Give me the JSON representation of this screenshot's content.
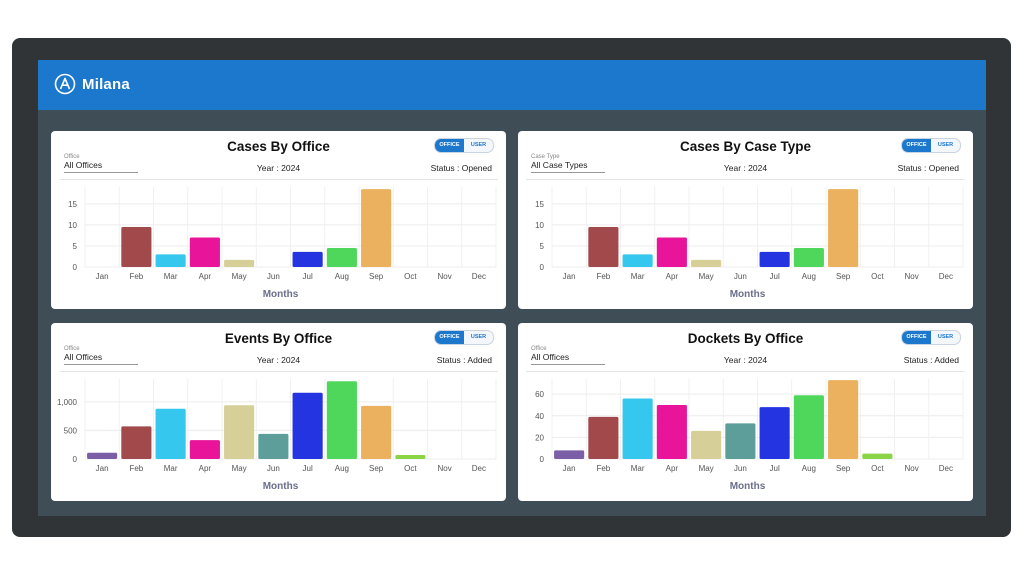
{
  "app": {
    "name": "Milana"
  },
  "colors": {
    "brand": "#1c78cc",
    "frame": "#313436",
    "panel": "#3f4d57"
  },
  "month_colors": [
    "#7b5fa6",
    "#a24a4b",
    "#35c7ee",
    "#e8149a",
    "#d6cf98",
    "#5d9e9a",
    "#2434e0",
    "#4fd75b",
    "#ebb15f",
    "#8bd448",
    "#cccccc",
    "#cccccc"
  ],
  "cards": [
    {
      "title": "Cases By Office",
      "toggle": {
        "on": "OFFICE",
        "off": "USER"
      },
      "filter": {
        "label": "Office",
        "value": "All Offices"
      },
      "year": "Year : 2024",
      "status": "Status : Opened",
      "chart_data": {
        "type": "bar",
        "title": "Cases By Office",
        "xlabel": "Months",
        "ylabel": "",
        "categories": [
          "Jan",
          "Feb",
          "Mar",
          "Apr",
          "May",
          "Jun",
          "Jul",
          "Aug",
          "Sep",
          "Oct",
          "Nov",
          "Dec"
        ],
        "values": [
          0,
          9.5,
          3,
          7,
          1.7,
          0,
          3.6,
          4.5,
          18.5,
          0,
          0,
          0
        ],
        "ylim": [
          0,
          19
        ],
        "yticks": [
          0,
          5,
          10,
          15
        ],
        "ytick_labels": [
          "0",
          "5",
          "10",
          "15"
        ]
      }
    },
    {
      "title": "Cases By Case Type",
      "toggle": {
        "on": "OFFICE",
        "off": "USER"
      },
      "filter": {
        "label": "Case Type",
        "value": "All Case Types"
      },
      "year": "Year : 2024",
      "status": "Status : Opened",
      "chart_data": {
        "type": "bar",
        "title": "Cases By Case Type",
        "xlabel": "Months",
        "ylabel": "",
        "categories": [
          "Jan",
          "Feb",
          "Mar",
          "Apr",
          "May",
          "Jun",
          "Jul",
          "Aug",
          "Sep",
          "Oct",
          "Nov",
          "Dec"
        ],
        "values": [
          0,
          9.5,
          3,
          7,
          1.7,
          0,
          3.6,
          4.5,
          18.5,
          0,
          0,
          0
        ],
        "ylim": [
          0,
          19
        ],
        "yticks": [
          0,
          5,
          10,
          15
        ],
        "ytick_labels": [
          "0",
          "5",
          "10",
          "15"
        ]
      }
    },
    {
      "title": "Events By Office",
      "toggle": {
        "on": "OFFICE",
        "off": "USER"
      },
      "filter": {
        "label": "Office",
        "value": "All Offices"
      },
      "year": "Year : 2024",
      "status": "Status : Added",
      "chart_data": {
        "type": "bar",
        "title": "Events By Office",
        "xlabel": "Months",
        "ylabel": "",
        "categories": [
          "Jan",
          "Feb",
          "Mar",
          "Apr",
          "May",
          "Jun",
          "Jul",
          "Aug",
          "Sep",
          "Oct",
          "Nov",
          "Dec"
        ],
        "values": [
          110,
          570,
          880,
          330,
          940,
          440,
          1160,
          1360,
          930,
          70,
          0,
          0
        ],
        "ylim": [
          0,
          1400
        ],
        "yticks": [
          0,
          500,
          1000
        ],
        "ytick_labels": [
          "0",
          "500",
          "1,000"
        ]
      }
    },
    {
      "title": "Dockets By Office",
      "toggle": {
        "on": "OFFICE",
        "off": "USER"
      },
      "filter": {
        "label": "Office",
        "value": "All Offices"
      },
      "year": "Year : 2024",
      "status": "Status : Added",
      "chart_data": {
        "type": "bar",
        "title": "Dockets By Office",
        "xlabel": "Months",
        "ylabel": "",
        "categories": [
          "Jan",
          "Feb",
          "Mar",
          "Apr",
          "May",
          "Jun",
          "Jul",
          "Aug",
          "Sep",
          "Oct",
          "Nov",
          "Dec"
        ],
        "values": [
          8,
          39,
          56,
          50,
          26,
          33,
          48,
          59,
          73,
          5,
          0,
          0
        ],
        "ylim": [
          0,
          74
        ],
        "yticks": [
          0,
          20,
          40,
          60
        ],
        "ytick_labels": [
          "0",
          "20",
          "40",
          "60"
        ]
      }
    }
  ]
}
